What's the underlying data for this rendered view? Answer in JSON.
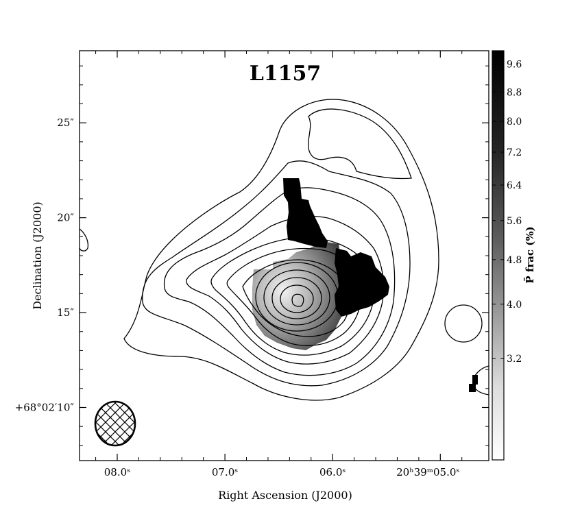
{
  "chart_data": {
    "type": "heatmap",
    "title": "L1157",
    "xlabel": "Right Ascension (J2000)",
    "ylabel": "Declination (J2000)",
    "x_ticks": [
      {
        "value": 8.0,
        "label": "08.0ˢ"
      },
      {
        "value": 7.0,
        "label": "07.0ˢ"
      },
      {
        "value": 6.0,
        "label": "06.0ˢ"
      },
      {
        "value": 5.0,
        "label": "20ʰ39ᵐ05.0ˢ"
      }
    ],
    "y_ticks": [
      {
        "value": 25,
        "label": "25″"
      },
      {
        "value": 20,
        "label": "20″"
      },
      {
        "value": 15,
        "label": "15″"
      },
      {
        "value": 10,
        "label": "+68°02′10″"
      }
    ],
    "xlim": [
      8.35,
      4.55
    ],
    "ylim": [
      7.2,
      28.8
    ],
    "colorbar": {
      "label": "P̄ frac (%)",
      "range": [
        2.4,
        10.0
      ],
      "ticks": [
        9.6,
        8.8,
        8.0,
        7.2,
        6.4,
        5.6,
        4.8,
        4.0,
        3.2
      ],
      "tick_labels": [
        "9.6",
        "8.8",
        "8.0",
        "7.2",
        "6.4",
        "5.6",
        "4.8",
        "4.0",
        "3.2"
      ],
      "scale": "nonlinear"
    },
    "source_peak": {
      "ra_s": 6.25,
      "dec": 15.8
    },
    "beam": {
      "ra_s": 8.0,
      "dec": 9.1,
      "shape": "ellipse",
      "hatched": true
    },
    "grid": false,
    "colormap": "gray_r"
  }
}
